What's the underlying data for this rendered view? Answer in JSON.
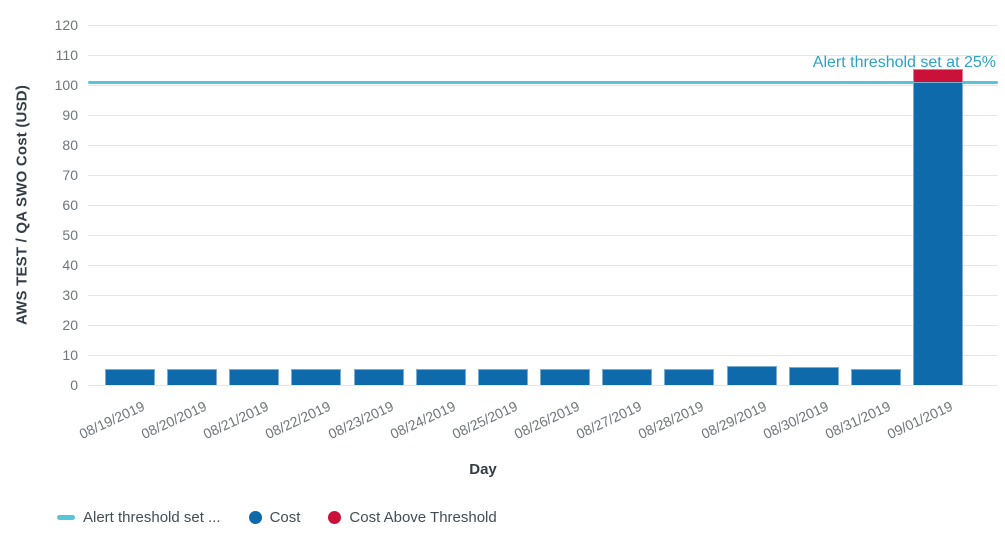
{
  "chart_data": {
    "type": "bar",
    "stacked": true,
    "title": "",
    "xlabel": "Day",
    "ylabel": "AWS TEST / QA SWO Cost (USD)",
    "ylim": [
      0,
      120
    ],
    "ytick_step": 10,
    "grid": true,
    "legend_position": "bottom-left",
    "categories": [
      "08/19/2019",
      "08/20/2019",
      "08/21/2019",
      "08/22/2019",
      "08/23/2019",
      "08/24/2019",
      "08/25/2019",
      "08/26/2019",
      "08/27/2019",
      "08/28/2019",
      "08/29/2019",
      "08/30/2019",
      "08/31/2019",
      "09/01/2019"
    ],
    "series": [
      {
        "name": "Cost",
        "color": "#0f6aab",
        "values": [
          5.5,
          5.5,
          5.5,
          5.5,
          5.5,
          5.5,
          5.5,
          5.5,
          5.5,
          5.5,
          6.2,
          6.0,
          5.4,
          101
        ]
      },
      {
        "name": "Cost Above Threshold",
        "color": "#c9113a",
        "values": [
          0,
          0,
          0,
          0,
          0,
          0,
          0,
          0,
          0,
          0,
          0,
          0,
          0,
          4.3
        ]
      }
    ],
    "threshold": {
      "value": 101,
      "color": "#56c5da",
      "annotation": "Alert threshold set at 25%",
      "annotation_color": "#2ba3c6"
    }
  },
  "legend": [
    {
      "swatch": "line",
      "color": "#56c5da",
      "label": "Alert threshold set ..."
    },
    {
      "swatch": "circle",
      "color": "#0f6aab",
      "label": "Cost"
    },
    {
      "swatch": "circle",
      "color": "#c9113a",
      "label": "Cost Above Threshold"
    }
  ]
}
